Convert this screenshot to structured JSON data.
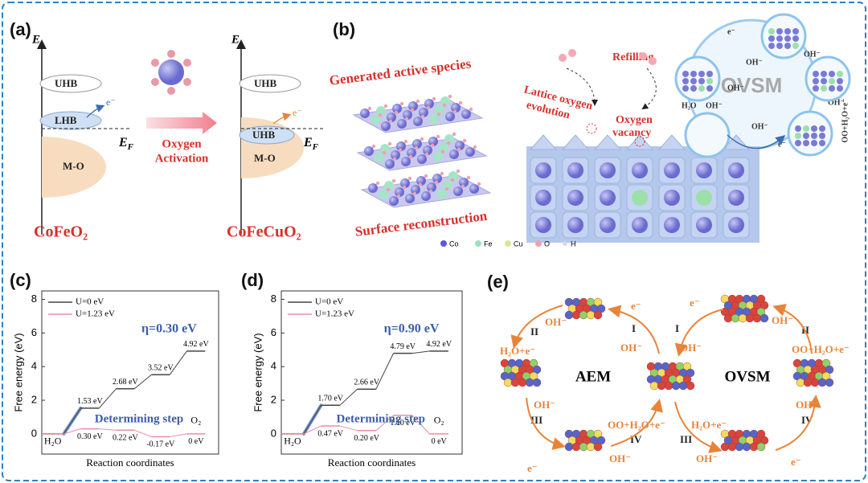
{
  "panel_labels": [
    "(a)",
    "(b)",
    "(c)",
    "(d)",
    "(e)"
  ],
  "panel_a": {
    "left": {
      "axis": "E",
      "uhb": "UHB",
      "lhb": "LHB",
      "electron": "e⁻",
      "ef": {
        "main": "E",
        "sub": "F"
      },
      "mo": "M-O",
      "name": "CoFeO₂"
    },
    "arrow": [
      "Oxygen",
      "Activation"
    ],
    "right": {
      "axis": "E",
      "uhb_top": "UHB",
      "uhb": "UHB",
      "electron": "e⁻",
      "ef": {
        "main": "E",
        "sub": "F"
      },
      "mo": "M-O",
      "name": "CoFeCuO₂"
    }
  },
  "panel_b": {
    "active": "Generated active species",
    "reconstruction": "Surface reconstruction",
    "lattice": [
      "Lattice oxygen",
      "evolution"
    ],
    "refilling": "Refilling",
    "vacancy": [
      "Oxygen",
      "vacancy"
    ],
    "cycle": "OVSM",
    "cycle_labels": [
      "e⁻",
      "OH⁻",
      "OH⁻",
      "OH⁻",
      "H₂O",
      "OH⁻",
      "OH⁻",
      "OO+H₂O+e⁻",
      "e⁻",
      "OH⁻"
    ],
    "legend": [
      "Co",
      "Fe",
      "Cu",
      "O",
      "H"
    ]
  },
  "panel_e": {
    "aem": "AEM",
    "ovsm": "OVSM",
    "labels": [
      "II",
      "OH⁻",
      "H₂O+e⁻",
      "e⁻",
      "I",
      "I",
      "OH⁻",
      "OH⁻",
      "e⁻",
      "OH⁻",
      "II",
      "OO+H₂O+e⁻",
      "OH⁻",
      "III",
      "OO+H₂O+e⁻",
      "H₂O+e⁻",
      "IV",
      "III",
      "OH⁻",
      "OH⁻",
      "OH⁻",
      "IV",
      "e⁻",
      "e⁻"
    ]
  },
  "chart_data": [
    {
      "type": "step",
      "ylabel": "Free energy (eV)",
      "xlabel": "Reaction coordinates",
      "categories": [
        "H₂O",
        null,
        null,
        null,
        "O₂"
      ],
      "ylim": [
        -1.2,
        8.5
      ],
      "yticks": [
        0,
        2,
        4,
        6,
        8
      ],
      "legend": "upper left",
      "eta": "η=0.30 eV",
      "determining": "Determining step",
      "series": [
        {
          "name": "U=0 eV",
          "color": "#444444",
          "values": [
            0,
            1.53,
            2.68,
            3.52,
            4.92
          ],
          "value_labels": [
            null,
            "1.53 eV",
            "2.68 eV",
            "3.52 eV",
            "4.92 eV"
          ]
        },
        {
          "name": "U=1.23 eV",
          "color": "#e58fa0",
          "values": [
            0,
            0.3,
            0.22,
            -0.17,
            0
          ],
          "value_labels": [
            null,
            "0.30 eV",
            "0.22 eV",
            "-0.17 eV",
            "0 eV"
          ]
        }
      ]
    },
    {
      "type": "step",
      "ylabel": "Free energy (eV)",
      "xlabel": "Reaction coordinates",
      "categories": [
        "H₂O",
        null,
        null,
        null,
        "O₂"
      ],
      "ylim": [
        -1.2,
        8.5
      ],
      "yticks": [
        0,
        2,
        4,
        6,
        8
      ],
      "legend": "upper left",
      "eta": "η=0.90 eV",
      "determining": "Determining step",
      "series": [
        {
          "name": "U=0 eV",
          "color": "#444444",
          "values": [
            0,
            1.7,
            2.66,
            4.79,
            4.92
          ],
          "value_labels": [
            null,
            "1.70 eV",
            "2.66 eV",
            "4.79 eV",
            "4.92 eV"
          ]
        },
        {
          "name": "U=1.23 eV",
          "color": "#e58fa0",
          "values": [
            0,
            0.47,
            0.2,
            1.1,
            0
          ],
          "value_labels": [
            null,
            "0.47 eV",
            "0.20 eV",
            "1.10 eV",
            "0 eV"
          ]
        }
      ]
    }
  ]
}
